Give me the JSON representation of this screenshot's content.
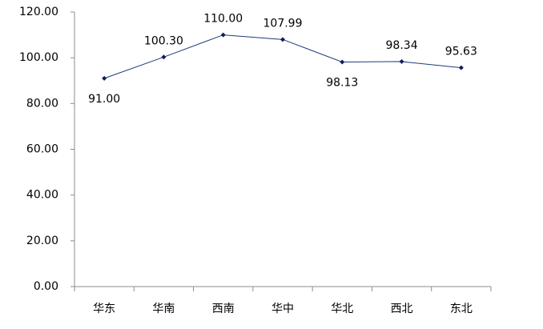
{
  "chart_data": {
    "type": "line",
    "categories": [
      "华东",
      "华南",
      "西南",
      "华中",
      "华北",
      "西北",
      "东北"
    ],
    "series": [
      {
        "color": "#1f3a7a",
        "values": [
          91.0,
          100.3,
          110.0,
          107.99,
          98.13,
          98.34,
          95.63
        ],
        "value_labels": [
          "91.00",
          "100.30",
          "110.00",
          "107.99",
          "98.13",
          "98.34",
          "95.63"
        ]
      }
    ],
    "ylim": [
      0,
      120
    ],
    "yticks": [
      {
        "value": 0,
        "label": "0.00"
      },
      {
        "value": 20,
        "label": "20.00"
      },
      {
        "value": 40,
        "label": "40.00"
      },
      {
        "value": 60,
        "label": "60.00"
      },
      {
        "value": 80,
        "label": "80.00"
      },
      {
        "value": 100,
        "label": "100.00"
      },
      {
        "value": 120,
        "label": "120.00"
      }
    ],
    "grid": false
  }
}
